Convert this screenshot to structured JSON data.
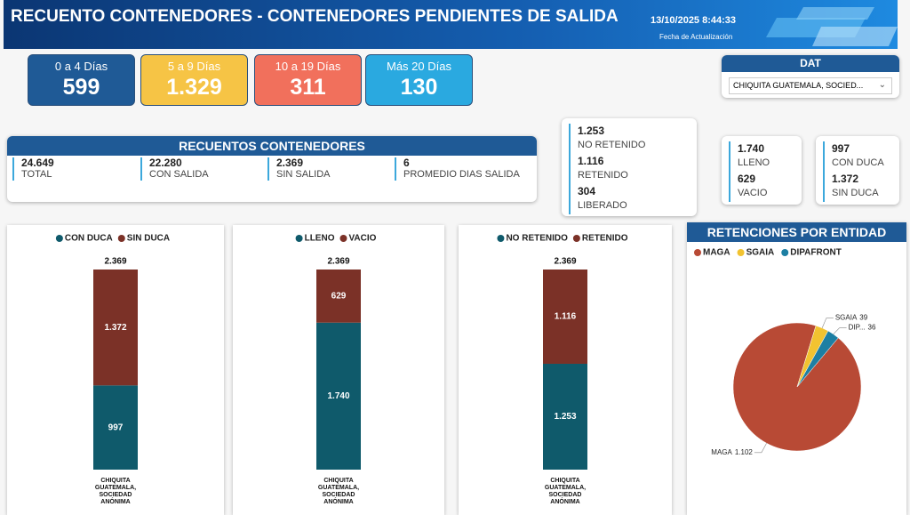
{
  "header": {
    "title": "RECUENTO CONTENEDORES - CONTENEDORES PENDIENTES DE SALIDA",
    "updated": "13/10/2025 8:44:33",
    "updated_label": "Fecha de Actualización"
  },
  "kpi_cards": [
    {
      "label": "0 a 4 Días",
      "value": "599"
    },
    {
      "label": "5 a 9 Días",
      "value": "1.329"
    },
    {
      "label": "10 a 19 Días",
      "value": "311"
    },
    {
      "label": "Más 20 Días",
      "value": "130"
    }
  ],
  "slicer": {
    "title": "DAT",
    "selected": "CHIQUITA GUATEMALA, SOCIED..."
  },
  "summary": {
    "title": "RECUENTOS CONTENEDORES",
    "items": [
      {
        "value": "24.649",
        "label": "TOTAL"
      },
      {
        "value": "22.280",
        "label": "CON SALIDA"
      },
      {
        "value": "2.369",
        "label": "SIN SALIDA"
      },
      {
        "value": "6",
        "label": "PROMEDIO DIAS SALIDA"
      }
    ]
  },
  "status_cards": [
    [
      {
        "value": "1.253",
        "label": "NO RETENIDO"
      },
      {
        "value": "1.116",
        "label": "RETENIDO"
      },
      {
        "value": "304",
        "label": "LIBERADO"
      }
    ],
    [
      {
        "value": "1.740",
        "label": "LLENO"
      },
      {
        "value": "629",
        "label": "VACIO"
      }
    ],
    [
      {
        "value": "997",
        "label": "CON DUCA"
      },
      {
        "value": "1.372",
        "label": "SIN DUCA"
      }
    ]
  ],
  "chart_data": [
    {
      "type": "stacked_bar",
      "categories": [
        "CHIQUITA GUATEMALA, SOCIEDAD ANÓNIMA"
      ],
      "total_label": "2.369",
      "series": [
        {
          "name": "CON DUCA",
          "color": "#0f5a6b",
          "values": [
            997
          ],
          "value_labels": [
            "997"
          ]
        },
        {
          "name": "SIN DUCA",
          "color": "#7b3127",
          "values": [
            1372
          ],
          "value_labels": [
            "1.372"
          ]
        }
      ]
    },
    {
      "type": "stacked_bar",
      "categories": [
        "CHIQUITA GUATEMALA, SOCIEDAD ANÓNIMA"
      ],
      "total_label": "2.369",
      "series": [
        {
          "name": "LLENO",
          "color": "#0f5a6b",
          "values": [
            1740
          ],
          "value_labels": [
            "1.740"
          ]
        },
        {
          "name": "VACIO",
          "color": "#7b3127",
          "values": [
            629
          ],
          "value_labels": [
            "629"
          ]
        }
      ]
    },
    {
      "type": "stacked_bar",
      "categories": [
        "CHIQUITA GUATEMALA, SOCIEDAD ANÓNIMA"
      ],
      "total_label": "2.369",
      "series": [
        {
          "name": "NO RETENIDO",
          "color": "#0f5a6b",
          "values": [
            1253
          ],
          "value_labels": [
            "1.253"
          ]
        },
        {
          "name": "RETENIDO",
          "color": "#7b3127",
          "values": [
            1116
          ],
          "value_labels": [
            "1.116"
          ]
        }
      ]
    },
    {
      "type": "pie",
      "title": "RETENCIONES POR ENTIDAD",
      "categories": [
        "MAGA",
        "SGAIA",
        "DIPAFRONT"
      ],
      "colors": [
        "#b84a35",
        "#f2c330",
        "#1d7fa3"
      ],
      "values": [
        1102,
        39,
        36
      ],
      "value_labels": [
        "1.102",
        "39",
        "36"
      ],
      "label_names": [
        "MAGA",
        "SGAIA",
        "DIP..."
      ]
    }
  ]
}
